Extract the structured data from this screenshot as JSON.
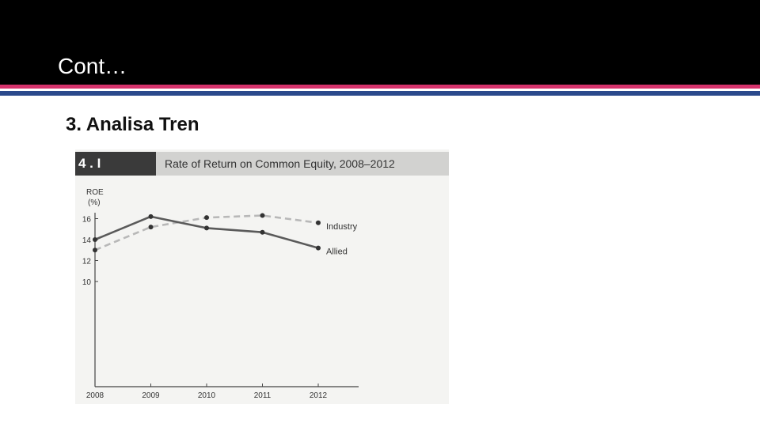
{
  "slide": {
    "title": "Cont…",
    "subtitle": "3. Analisa Tren"
  },
  "colors": {
    "header_bg": "#000000",
    "stripe_pink": "#d6336c",
    "stripe_blue": "#2b4a8c",
    "allied_line": "#5a5a5a",
    "industry_line": "#b8b8b8"
  },
  "figure": {
    "number": "4 . I"
  },
  "chart_data": {
    "type": "line",
    "title": "Rate of Return on Common Equity, 2008–2012",
    "ylabel_line1": "ROE",
    "ylabel_line2": "(%)",
    "categories": [
      "2008",
      "2009",
      "2010",
      "2011",
      "2012"
    ],
    "yticks": [
      "10",
      "12",
      "14",
      "16"
    ],
    "ylim": [
      0,
      17
    ],
    "series": [
      {
        "name": "Industry",
        "style": "dashed",
        "values": [
          13.0,
          15.2,
          16.1,
          16.3,
          15.6
        ]
      },
      {
        "name": "Allied",
        "style": "solid",
        "values": [
          14.0,
          16.2,
          15.1,
          14.7,
          13.2
        ]
      }
    ],
    "legend": "inline-right"
  }
}
